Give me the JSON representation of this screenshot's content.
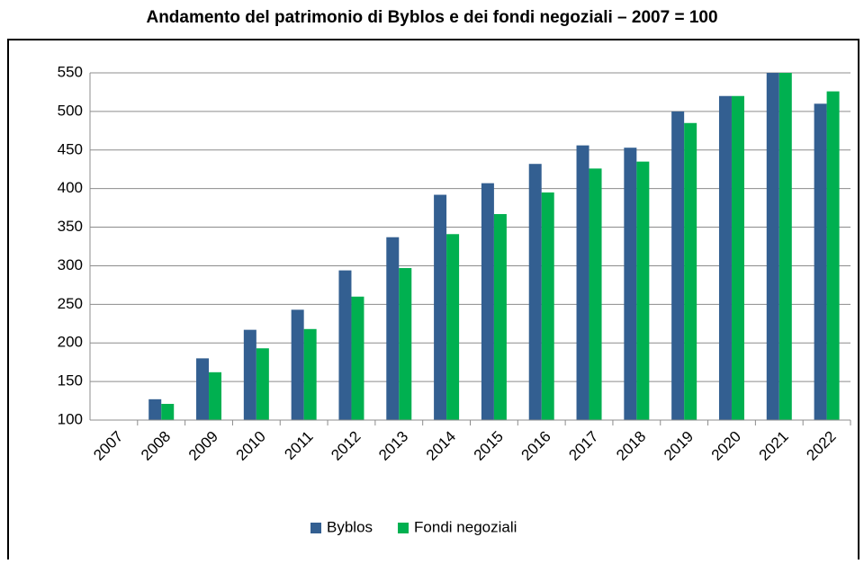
{
  "chart_data": {
    "type": "bar",
    "title": "Andamento del patrimonio di Byblos e dei fondi negoziali – 2007 = 100",
    "categories": [
      "2007",
      "2008",
      "2009",
      "2010",
      "2011",
      "2012",
      "2013",
      "2014",
      "2015",
      "2016",
      "2017",
      "2018",
      "2019",
      "2020",
      "2021",
      "2022"
    ],
    "series": [
      {
        "name": "Byblos",
        "color": "#335f91",
        "values": [
          100,
          127,
          180,
          217,
          243,
          294,
          337,
          392,
          407,
          432,
          456,
          453,
          500,
          520,
          550,
          510
        ]
      },
      {
        "name": "Fondi negoziali",
        "color": "#00b050",
        "values": [
          100,
          121,
          162,
          193,
          218,
          260,
          297,
          341,
          367,
          395,
          426,
          435,
          485,
          520,
          550,
          526
        ]
      }
    ],
    "ylim": [
      100,
      550
    ],
    "yticks": [
      100,
      150,
      200,
      250,
      300,
      350,
      400,
      450,
      500,
      550
    ],
    "grid": true,
    "legend": "bottom"
  }
}
